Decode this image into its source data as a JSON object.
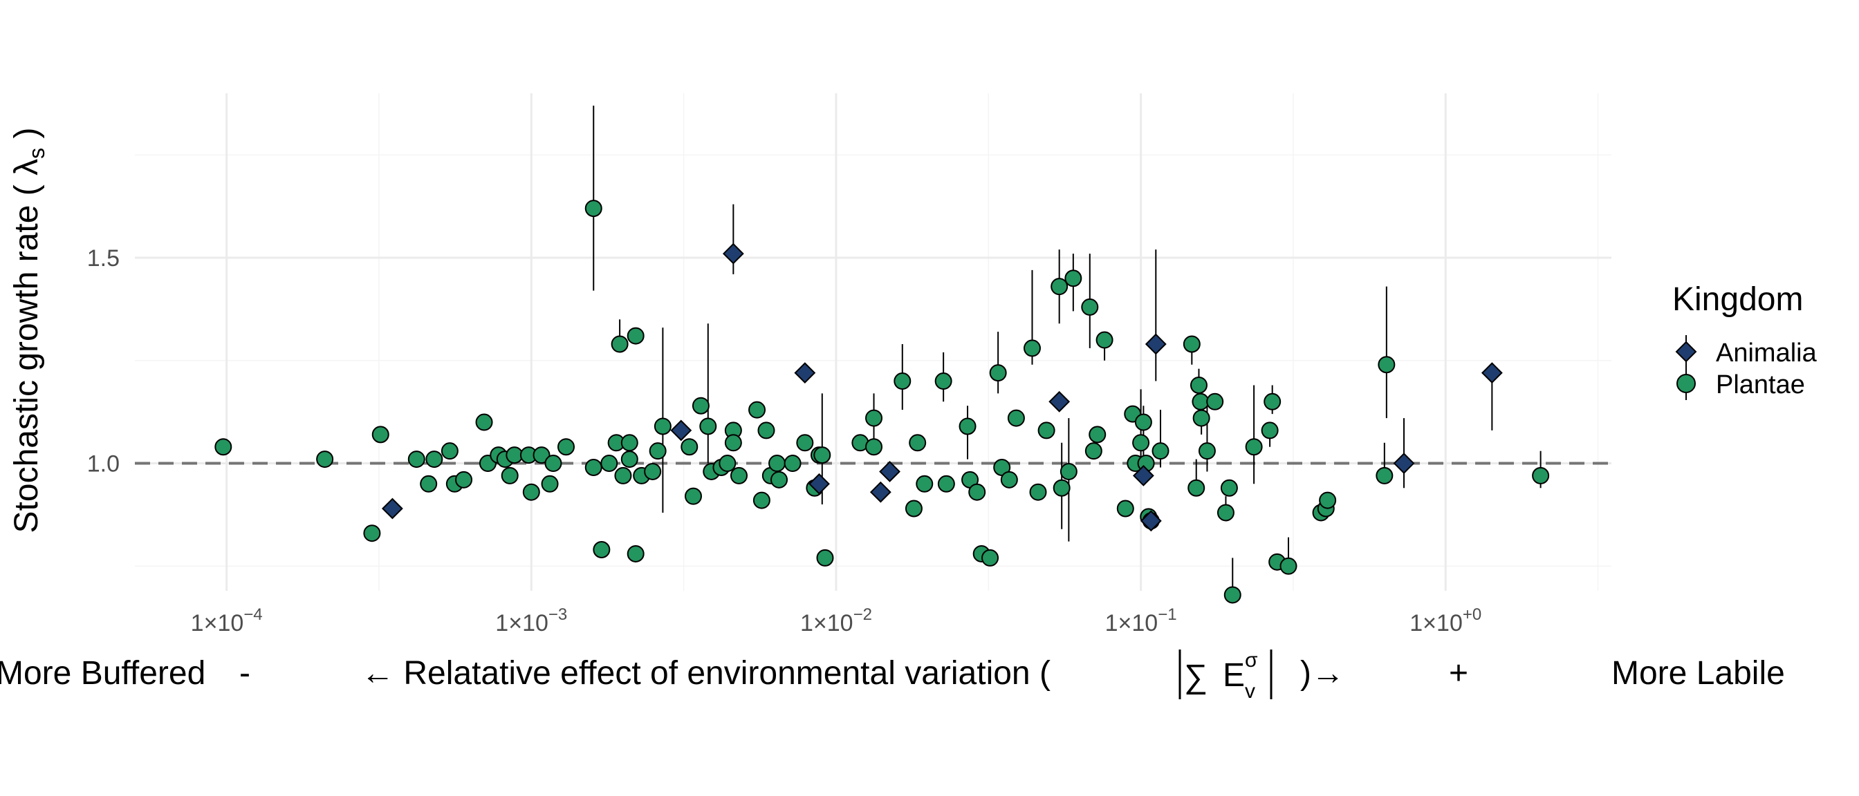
{
  "chart_data": {
    "type": "scatter",
    "x_scale": "log10",
    "xlim": [
      5e-05,
      3.5
    ],
    "ylim": [
      0.69,
      1.9
    ],
    "grid": true,
    "reference_line": 1.0,
    "y_ticks": [
      1.0,
      1.5
    ],
    "y_tick_labels": [
      "1.0",
      "1.5"
    ],
    "x_ticks": [
      0.0001,
      0.001,
      0.01,
      0.1,
      1
    ],
    "x_tick_labels": [
      {
        "base": "1",
        "times": "×",
        "ten": "10",
        "exp": "−4"
      },
      {
        "base": "1",
        "times": "×",
        "ten": "10",
        "exp": "−3"
      },
      {
        "base": "1",
        "times": "×",
        "ten": "10",
        "exp": "−2"
      },
      {
        "base": "1",
        "times": "×",
        "ten": "10",
        "exp": "−1"
      },
      {
        "base": "1",
        "times": "×",
        "ten": "10",
        "exp": "+0"
      }
    ],
    "ylabel": {
      "text": "Stochastic growth rate (",
      "symbol": "λ",
      "sub": "s",
      "close": ")"
    },
    "xlabel": {
      "left_end": "More Buffered",
      "minus": "-",
      "arrow_left": "←",
      "main": "Relatative effect of environmental variation (",
      "sum": "∑",
      "var": "E",
      "sup": "σ",
      "sub": "v",
      "close": ")",
      "arrow_right": "→",
      "plus": "+",
      "right_end": "More Labile"
    },
    "legend": {
      "title": "Kingdom",
      "position": "right",
      "entries": [
        {
          "name": "Animalia",
          "shape": "diamond",
          "color": "#1f3d6e"
        },
        {
          "name": "Plantae",
          "shape": "circle",
          "color": "#23955e"
        }
      ]
    },
    "series": [
      {
        "name": "Animalia",
        "shape": "diamond",
        "color": "#1f3d6e",
        "points": [
          {
            "x": 0.00035,
            "y": 0.89
          },
          {
            "x": 0.0031,
            "y": 1.08
          },
          {
            "x": 0.0046,
            "y": 1.51,
            "lo": 1.46,
            "hi": 1.63
          },
          {
            "x": 0.0079,
            "y": 1.22
          },
          {
            "x": 0.0088,
            "y": 0.95
          },
          {
            "x": 0.014,
            "y": 0.93
          },
          {
            "x": 0.015,
            "y": 0.98
          },
          {
            "x": 0.054,
            "y": 1.15
          },
          {
            "x": 0.102,
            "y": 0.97
          },
          {
            "x": 0.108,
            "y": 0.86
          },
          {
            "x": 0.112,
            "y": 1.29,
            "lo": 1.2,
            "hi": 1.52
          },
          {
            "x": 0.73,
            "y": 1.0,
            "lo": 0.94,
            "hi": 1.11
          },
          {
            "x": 1.42,
            "y": 1.22,
            "lo": 1.08,
            "hi": 1.24
          }
        ]
      },
      {
        "name": "Plantae",
        "shape": "circle",
        "color": "#23955e",
        "points": [
          {
            "x": 9.75e-05,
            "y": 1.04
          },
          {
            "x": 0.00021,
            "y": 1.01
          },
          {
            "x": 0.0003,
            "y": 0.83
          },
          {
            "x": 0.00032,
            "y": 1.07
          },
          {
            "x": 0.00042,
            "y": 1.01
          },
          {
            "x": 0.00046,
            "y": 0.95
          },
          {
            "x": 0.00048,
            "y": 1.01
          },
          {
            "x": 0.00054,
            "y": 1.03
          },
          {
            "x": 0.00056,
            "y": 0.95
          },
          {
            "x": 0.0006,
            "y": 0.96
          },
          {
            "x": 0.0007,
            "y": 1.1
          },
          {
            "x": 0.00072,
            "y": 1.0
          },
          {
            "x": 0.00078,
            "y": 1.02
          },
          {
            "x": 0.00082,
            "y": 1.01
          },
          {
            "x": 0.00085,
            "y": 0.97
          },
          {
            "x": 0.00088,
            "y": 1.02
          },
          {
            "x": 0.00098,
            "y": 1.02
          },
          {
            "x": 0.001,
            "y": 0.93
          },
          {
            "x": 0.00108,
            "y": 1.02
          },
          {
            "x": 0.00115,
            "y": 0.95
          },
          {
            "x": 0.00118,
            "y": 1.0
          },
          {
            "x": 0.0013,
            "y": 1.04
          },
          {
            "x": 0.0016,
            "y": 1.62,
            "lo": 1.42,
            "hi": 1.87
          },
          {
            "x": 0.0016,
            "y": 0.99
          },
          {
            "x": 0.0017,
            "y": 0.79
          },
          {
            "x": 0.0018,
            "y": 1.0
          },
          {
            "x": 0.0019,
            "y": 1.05
          },
          {
            "x": 0.00195,
            "y": 1.29,
            "lo": 1.27,
            "hi": 1.35
          },
          {
            "x": 0.002,
            "y": 0.97
          },
          {
            "x": 0.0021,
            "y": 1.05
          },
          {
            "x": 0.0021,
            "y": 1.01
          },
          {
            "x": 0.0022,
            "y": 1.31
          },
          {
            "x": 0.0022,
            "y": 0.78
          },
          {
            "x": 0.0023,
            "y": 0.97
          },
          {
            "x": 0.0025,
            "y": 0.98
          },
          {
            "x": 0.0026,
            "y": 1.03
          },
          {
            "x": 0.0027,
            "y": 1.09,
            "lo": 0.88,
            "hi": 1.33
          },
          {
            "x": 0.0033,
            "y": 1.04
          },
          {
            "x": 0.0034,
            "y": 0.92
          },
          {
            "x": 0.0036,
            "y": 1.14
          },
          {
            "x": 0.0038,
            "y": 1.09,
            "lo": 1.0,
            "hi": 1.34
          },
          {
            "x": 0.0039,
            "y": 0.98
          },
          {
            "x": 0.0042,
            "y": 0.99
          },
          {
            "x": 0.0044,
            "y": 1.0
          },
          {
            "x": 0.0046,
            "y": 1.08
          },
          {
            "x": 0.0046,
            "y": 1.05
          },
          {
            "x": 0.0048,
            "y": 0.97
          },
          {
            "x": 0.0055,
            "y": 1.13
          },
          {
            "x": 0.0057,
            "y": 0.91
          },
          {
            "x": 0.0059,
            "y": 1.08
          },
          {
            "x": 0.0061,
            "y": 0.97
          },
          {
            "x": 0.0064,
            "y": 1.0
          },
          {
            "x": 0.0065,
            "y": 0.96
          },
          {
            "x": 0.0072,
            "y": 1.0
          },
          {
            "x": 0.0079,
            "y": 1.05
          },
          {
            "x": 0.0085,
            "y": 0.94
          },
          {
            "x": 0.0088,
            "y": 1.02
          },
          {
            "x": 0.009,
            "y": 1.02,
            "lo": 0.9,
            "hi": 1.17
          },
          {
            "x": 0.0092,
            "y": 0.77
          },
          {
            "x": 0.012,
            "y": 1.05
          },
          {
            "x": 0.0133,
            "y": 1.11,
            "lo": 1.06,
            "hi": 1.17
          },
          {
            "x": 0.0133,
            "y": 1.04
          },
          {
            "x": 0.0165,
            "y": 1.2,
            "lo": 1.13,
            "hi": 1.29
          },
          {
            "x": 0.018,
            "y": 0.89
          },
          {
            "x": 0.0185,
            "y": 1.05
          },
          {
            "x": 0.0195,
            "y": 0.95
          },
          {
            "x": 0.0225,
            "y": 1.2,
            "lo": 1.15,
            "hi": 1.27
          },
          {
            "x": 0.023,
            "y": 0.95
          },
          {
            "x": 0.027,
            "y": 1.09,
            "lo": 1.01,
            "hi": 1.14
          },
          {
            "x": 0.0275,
            "y": 0.96
          },
          {
            "x": 0.029,
            "y": 0.93
          },
          {
            "x": 0.03,
            "y": 0.78
          },
          {
            "x": 0.032,
            "y": 0.77
          },
          {
            "x": 0.034,
            "y": 1.22,
            "lo": 1.17,
            "hi": 1.32
          },
          {
            "x": 0.035,
            "y": 0.99
          },
          {
            "x": 0.037,
            "y": 0.96
          },
          {
            "x": 0.039,
            "y": 1.11,
            "lo": 1.1,
            "hi": 1.12
          },
          {
            "x": 0.044,
            "y": 1.28,
            "lo": 1.24,
            "hi": 1.47
          },
          {
            "x": 0.046,
            "y": 0.93
          },
          {
            "x": 0.049,
            "y": 1.08
          },
          {
            "x": 0.054,
            "y": 1.43,
            "lo": 1.34,
            "hi": 1.52
          },
          {
            "x": 0.055,
            "y": 0.94,
            "lo": 0.84,
            "hi": 1.05
          },
          {
            "x": 0.058,
            "y": 0.98,
            "lo": 0.81,
            "hi": 1.11
          },
          {
            "x": 0.06,
            "y": 1.45,
            "lo": 1.37,
            "hi": 1.51
          },
          {
            "x": 0.068,
            "y": 1.38,
            "lo": 1.28,
            "hi": 1.51
          },
          {
            "x": 0.07,
            "y": 1.03
          },
          {
            "x": 0.072,
            "y": 1.07
          },
          {
            "x": 0.076,
            "y": 1.3,
            "lo": 1.25,
            "hi": 1.31
          },
          {
            "x": 0.089,
            "y": 0.89
          },
          {
            "x": 0.094,
            "y": 1.12,
            "lo": 1.1,
            "hi": 1.14
          },
          {
            "x": 0.096,
            "y": 1.0
          },
          {
            "x": 0.1,
            "y": 1.05,
            "lo": 0.99,
            "hi": 1.18
          },
          {
            "x": 0.102,
            "y": 1.1,
            "lo": 1.0,
            "hi": 1.14
          },
          {
            "x": 0.104,
            "y": 1.0
          },
          {
            "x": 0.106,
            "y": 0.87,
            "lo": 0.85,
            "hi": 0.89
          },
          {
            "x": 0.108,
            "y": 0.86
          },
          {
            "x": 0.116,
            "y": 1.03,
            "lo": 0.99,
            "hi": 1.13
          },
          {
            "x": 0.147,
            "y": 1.29,
            "lo": 1.24,
            "hi": 1.31
          },
          {
            "x": 0.152,
            "y": 0.94,
            "lo": 0.92,
            "hi": 1.01
          },
          {
            "x": 0.155,
            "y": 1.19,
            "lo": 1.15,
            "hi": 1.23
          },
          {
            "x": 0.157,
            "y": 1.15,
            "lo": 1.11,
            "hi": 1.18
          },
          {
            "x": 0.158,
            "y": 1.11,
            "lo": 1.07,
            "hi": 1.15
          },
          {
            "x": 0.165,
            "y": 1.03,
            "lo": 0.98,
            "hi": 1.15
          },
          {
            "x": 0.175,
            "y": 1.15
          },
          {
            "x": 0.19,
            "y": 0.88,
            "lo": 0.86,
            "hi": 0.92
          },
          {
            "x": 0.195,
            "y": 0.94
          },
          {
            "x": 0.2,
            "y": 0.68,
            "lo": 0.67,
            "hi": 0.77
          },
          {
            "x": 0.235,
            "y": 1.04,
            "lo": 0.95,
            "hi": 1.19
          },
          {
            "x": 0.265,
            "y": 1.08,
            "lo": 1.04,
            "hi": 1.1
          },
          {
            "x": 0.27,
            "y": 1.15,
            "lo": 1.12,
            "hi": 1.19
          },
          {
            "x": 0.28,
            "y": 0.76,
            "lo": 0.75,
            "hi": 0.78
          },
          {
            "x": 0.305,
            "y": 0.75,
            "lo": 0.74,
            "hi": 0.82
          },
          {
            "x": 0.39,
            "y": 0.88,
            "lo": 0.87,
            "hi": 0.9
          },
          {
            "x": 0.405,
            "y": 0.89,
            "lo": 0.88,
            "hi": 0.93
          },
          {
            "x": 0.41,
            "y": 0.91,
            "lo": 0.89,
            "hi": 0.93
          },
          {
            "x": 0.63,
            "y": 0.97,
            "lo": 0.96,
            "hi": 1.05
          },
          {
            "x": 0.64,
            "y": 1.24,
            "lo": 1.11,
            "hi": 1.43
          },
          {
            "x": 2.05,
            "y": 0.97,
            "lo": 0.94,
            "hi": 1.03
          }
        ]
      }
    ]
  }
}
